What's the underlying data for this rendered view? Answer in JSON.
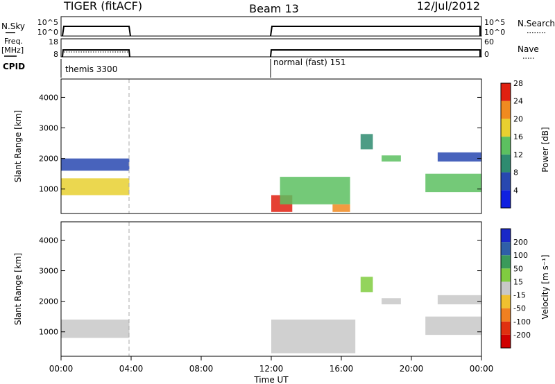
{
  "header": {
    "station": "TIGER (fitACF)",
    "beam": "Beam 13",
    "date": "12/Jul/2012"
  },
  "top_panels": {
    "nsky_label": "N.Sky",
    "nsky_ticks": [
      "10^5",
      "10^0"
    ],
    "nsearch_label": "N.Search",
    "nsearch_ticks": [
      "10^5",
      "10^0"
    ],
    "freq_label_1": "Freq.",
    "freq_label_2": "[MHz]",
    "freq_ticks": [
      "18",
      "8"
    ],
    "nave_label": "Nave",
    "nave_ticks": [
      "60",
      "0"
    ],
    "cpid_label": "CPID",
    "cpid_segments": [
      {
        "label": "themis 3300",
        "start_hour": 0.0,
        "end_hour": 3.9
      },
      {
        "label": "normal (fast) 151",
        "start_hour": 12.0,
        "end_hour": 24.0
      }
    ]
  },
  "chart_data": [
    {
      "type": "heatmap",
      "name": "power",
      "xlabel": "Time UT",
      "ylabel": "Slant Range [km]",
      "xlim": [
        0,
        24
      ],
      "ylim": [
        200,
        4600
      ],
      "x_ticks": [
        "00:00",
        "04:00",
        "08:00",
        "12:00",
        "16:00",
        "20:00",
        "00:00"
      ],
      "y_ticks": [
        1000,
        2000,
        3000,
        4000
      ],
      "colorbar": {
        "label": "Power [dB]",
        "ticks": [
          4,
          8,
          12,
          16,
          20,
          24,
          28
        ],
        "colors": [
          "#1020e0",
          "#2848b0",
          "#2e8b70",
          "#5cc060",
          "#e8d030",
          "#f08a20",
          "#e02010"
        ]
      },
      "regions": [
        {
          "t0": 0.0,
          "t1": 3.9,
          "r0": 800,
          "r1": 1350,
          "level": 18
        },
        {
          "t0": 0.0,
          "t1": 3.9,
          "r0": 1600,
          "r1": 2000,
          "level": 6
        },
        {
          "t0": 12.0,
          "t1": 13.2,
          "r0": 250,
          "r1": 800,
          "level": 24
        },
        {
          "t0": 12.5,
          "t1": 16.5,
          "r0": 500,
          "r1": 1400,
          "level": 12
        },
        {
          "t0": 15.5,
          "t1": 16.5,
          "r0": 250,
          "r1": 500,
          "level": 20
        },
        {
          "t0": 17.1,
          "t1": 17.8,
          "r0": 2300,
          "r1": 2800,
          "level": 8
        },
        {
          "t0": 18.3,
          "t1": 19.4,
          "r0": 1900,
          "r1": 2100,
          "level": 12
        },
        {
          "t0": 20.8,
          "t1": 24.0,
          "r0": 900,
          "r1": 1500,
          "level": 14
        },
        {
          "t0": 21.5,
          "t1": 24.0,
          "r0": 1900,
          "r1": 2200,
          "level": 6
        }
      ]
    },
    {
      "type": "heatmap",
      "name": "velocity",
      "xlabel": "Time UT",
      "ylabel": "Slant Range [km]",
      "xlim": [
        0,
        24
      ],
      "ylim": [
        200,
        4600
      ],
      "x_ticks": [
        "00:00",
        "04:00",
        "08:00",
        "12:00",
        "16:00",
        "20:00",
        "00:00"
      ],
      "y_ticks": [
        1000,
        2000,
        3000,
        4000
      ],
      "colorbar": {
        "label": "Velocity [m s⁻¹]",
        "ticks": [
          200,
          100,
          50,
          15,
          -15,
          -50,
          -100,
          -200
        ],
        "colors": [
          "#1a28c8",
          "#2f5fa8",
          "#3a9a5a",
          "#80cc40",
          "#c8c8c8",
          "#f0c030",
          "#f08020",
          "#e03010",
          "#d00000"
        ]
      },
      "regions": [
        {
          "t0": 0.0,
          "t1": 3.9,
          "r0": 800,
          "r1": 1400,
          "level": 0
        },
        {
          "t0": 12.0,
          "t1": 16.8,
          "r0": 300,
          "r1": 1400,
          "level": 0
        },
        {
          "t0": 17.1,
          "t1": 17.8,
          "r0": 2300,
          "r1": 2800,
          "level": 30
        },
        {
          "t0": 18.3,
          "t1": 19.4,
          "r0": 1900,
          "r1": 2100,
          "level": 0
        },
        {
          "t0": 20.8,
          "t1": 24.0,
          "r0": 900,
          "r1": 1500,
          "level": 0
        },
        {
          "t0": 21.5,
          "t1": 24.0,
          "r0": 1900,
          "r1": 2200,
          "level": 0
        }
      ]
    }
  ]
}
